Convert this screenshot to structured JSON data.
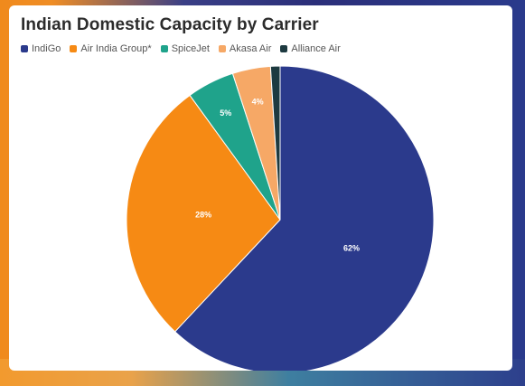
{
  "chart_data": {
    "type": "pie",
    "title": "Indian Domestic Capacity by Carrier",
    "legend_position": "top-left",
    "slices": [
      {
        "name": "IndiGo",
        "value": 62,
        "label": "62%",
        "color": "#2b3a8c"
      },
      {
        "name": "Air India Group*",
        "value": 28,
        "label": "28%",
        "color": "#f68a14"
      },
      {
        "name": "SpiceJet",
        "value": 5,
        "label": "5%",
        "color": "#1fa38b"
      },
      {
        "name": "Akasa Air",
        "value": 4,
        "label": "4%",
        "color": "#f6a866"
      },
      {
        "name": "Alliance Air",
        "value": 1,
        "label": "",
        "color": "#1d3a40"
      }
    ]
  }
}
